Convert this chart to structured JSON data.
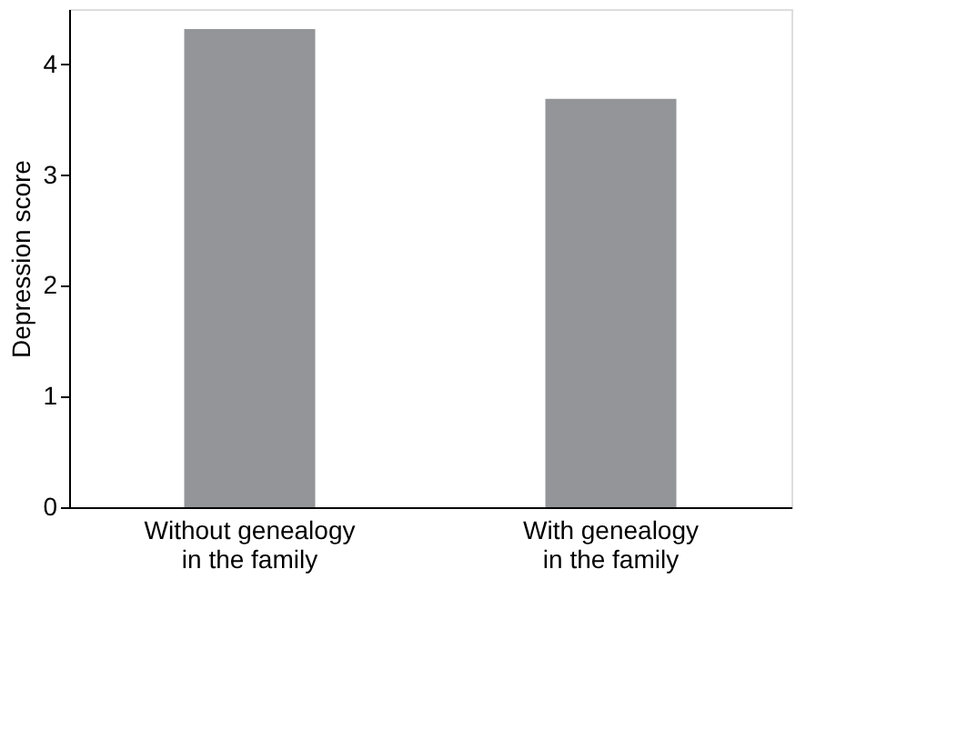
{
  "chart_data": {
    "type": "bar",
    "ylabel": "Depression score",
    "categories": [
      "Without genealogy\nin the family",
      "With genealogy\nin the family"
    ],
    "values": [
      4.32,
      3.69
    ],
    "color": "#939598",
    "ylim": [
      0,
      4.5
    ],
    "yticks": [
      0,
      1,
      2,
      3,
      4
    ],
    "grid": false
  }
}
